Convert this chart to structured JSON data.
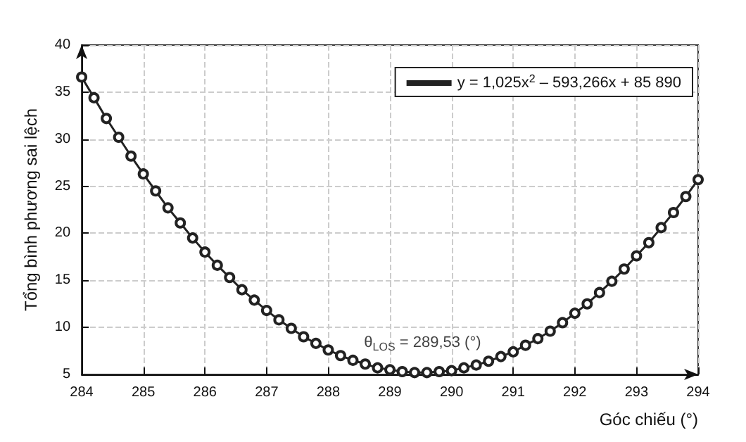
{
  "chart_data": {
    "type": "line",
    "xlabel": "Góc chiếu (°)",
    "ylabel": "Tổng bình phương sai lệch",
    "x": [
      284,
      284.2,
      284.4,
      284.6,
      284.8,
      285,
      285.2,
      285.4,
      285.6,
      285.8,
      286,
      286.2,
      286.4,
      286.6,
      286.8,
      287,
      287.2,
      287.4,
      287.6,
      287.8,
      288,
      288.2,
      288.4,
      288.6,
      288.8,
      289,
      289.2,
      289.4,
      289.6,
      289.8,
      290,
      290.2,
      290.4,
      290.6,
      290.8,
      291,
      291.2,
      291.4,
      291.6,
      291.8,
      292,
      292.2,
      292.4,
      292.6,
      292.8,
      293,
      293.2,
      293.4,
      293.6,
      293.8,
      294
    ],
    "series": [
      {
        "name": "y = 1,025x$^{2}$ – 593,266x + 85 890",
        "color": "#222222",
        "values": [
          36.6,
          34.4,
          32.2,
          30.2,
          28.2,
          26.3,
          24.5,
          22.7,
          21.1,
          19.5,
          18.0,
          16.6,
          15.3,
          14.0,
          12.9,
          11.8,
          10.8,
          9.9,
          9.0,
          8.3,
          7.6,
          7.0,
          6.5,
          6.1,
          5.7,
          5.5,
          5.3,
          5.2,
          5.2,
          5.3,
          5.4,
          5.7,
          6.0,
          6.4,
          6.9,
          7.4,
          8.1,
          8.8,
          9.6,
          10.5,
          11.5,
          12.5,
          13.7,
          14.9,
          16.2,
          17.6,
          19.0,
          20.6,
          22.2,
          23.9,
          25.7
        ]
      }
    ],
    "xlim": [
      284,
      294
    ],
    "xticks": [
      284,
      285,
      286,
      287,
      288,
      289,
      290,
      291,
      292,
      293,
      294
    ],
    "ylim": [
      5,
      40
    ],
    "yticks": [
      5,
      10,
      15,
      20,
      25,
      30,
      35,
      40
    ],
    "annotations": [
      {
        "text": "θ$_{LOS}$ = 289,53 (°)",
        "x": 289.53,
        "y": 5.2
      }
    ],
    "grid": true,
    "legend": "top right",
    "marker": "circle",
    "line_style": "solid"
  }
}
